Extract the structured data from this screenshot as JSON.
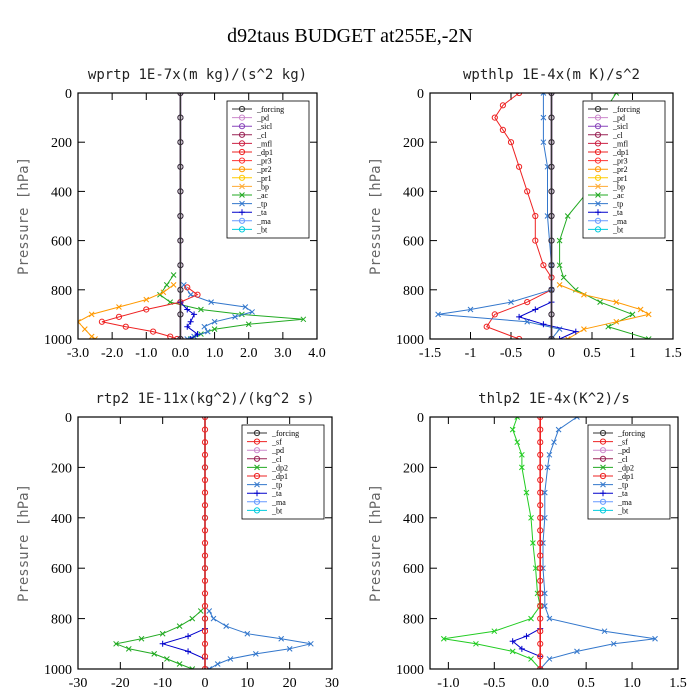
{
  "figure_title": "d92taus  BUDGET at255E,-2N",
  "chart_data": [
    {
      "type": "line",
      "title": "wprtp  1E-7x(m kg)/(s^2 kg)",
      "ylabel": "Pressure [hPa]",
      "xlabel": "",
      "xlim": [
        -3.0,
        4.0
      ],
      "ylim": [
        1000,
        0
      ],
      "xticks": [
        "-3.0",
        "-2.0",
        "-1.0",
        "0.0",
        "1.0",
        "2.0",
        "3.0",
        "4.0"
      ],
      "yticks": [
        "0",
        "200",
        "400",
        "600",
        "800",
        "1000"
      ],
      "legend": [
        "_forcing",
        "_pd",
        "_sicl",
        "_cl",
        "_mfl",
        "_dp1",
        "_pr3",
        "_pr2",
        "_pr1",
        "_bp",
        "_ac",
        "_tp",
        "_ta",
        "_ma",
        "_bt"
      ],
      "legend_position": "top-right",
      "series": [
        {
          "name": "_ac",
          "color": "#22aa22",
          "marker": "x",
          "y": [
            740,
            780,
            820,
            850,
            880,
            900,
            920,
            940,
            960,
            980,
            1000
          ],
          "x": [
            -0.2,
            -0.4,
            -0.6,
            -0.3,
            0.6,
            1.8,
            3.6,
            2.0,
            1.0,
            0.6,
            0.3
          ]
        },
        {
          "name": "_tp",
          "color": "#3377cc",
          "marker": "x",
          "y": [
            780,
            820,
            850,
            870,
            890,
            910,
            930,
            950,
            970,
            990,
            1000
          ],
          "x": [
            0.1,
            0.3,
            0.9,
            1.9,
            2.1,
            1.6,
            1.0,
            0.7,
            0.8,
            0.4,
            0.2
          ]
        },
        {
          "name": "_bp",
          "color": "#ff9900",
          "marker": "x",
          "y": [
            780,
            810,
            840,
            870,
            900,
            930,
            960,
            990,
            1000
          ],
          "x": [
            -0.2,
            -0.5,
            -1.0,
            -1.8,
            -2.6,
            -3.0,
            -2.8,
            -2.6,
            -2.5
          ]
        },
        {
          "name": "_dp1",
          "color": "#ee2222",
          "marker": "o",
          "y": [
            790,
            820,
            850,
            880,
            910,
            930,
            950,
            970,
            990,
            1000
          ],
          "x": [
            0.2,
            0.5,
            0.0,
            -1.0,
            -1.8,
            -2.3,
            -1.6,
            -0.8,
            -0.3,
            -0.1
          ]
        },
        {
          "name": "_ta",
          "color": "#0000cc",
          "marker": "+",
          "y": [
            850,
            880,
            900,
            930,
            950,
            980,
            1000
          ],
          "x": [
            0.0,
            0.2,
            0.4,
            0.3,
            0.2,
            0.5,
            0.3
          ]
        },
        {
          "name": "_bt",
          "color": "#aa44cc",
          "marker": "o",
          "y": [
            0,
            100,
            200,
            300,
            400,
            500,
            600,
            700,
            800,
            900,
            1000
          ],
          "x": [
            0,
            0,
            0,
            0,
            0,
            0,
            0,
            0,
            0,
            0,
            0
          ]
        },
        {
          "name": "_forcing",
          "color": "#333333",
          "marker": "o",
          "y": [
            0,
            100,
            200,
            300,
            400,
            500,
            600,
            700,
            800,
            900,
            1000
          ],
          "x": [
            0,
            0,
            0,
            0,
            0,
            0,
            0,
            0,
            0,
            0,
            0
          ]
        }
      ]
    },
    {
      "type": "line",
      "title": "wpthlp  1E-4x(m K)/s^2",
      "ylabel": "Pressure [hPa]",
      "xlabel": "",
      "xlim": [
        -1.5,
        1.5
      ],
      "ylim": [
        1000,
        0
      ],
      "xticks": [
        "-1.5",
        "-1",
        "-0.5",
        "0",
        "0.5",
        "1",
        "1.5"
      ],
      "yticks": [
        "0",
        "200",
        "400",
        "600",
        "800",
        "1000"
      ],
      "legend": [
        "_forcing",
        "_pd",
        "_sicl",
        "_cl",
        "_mfl",
        "_dp1",
        "_pr3",
        "_pr2",
        "_pr1",
        "_bp",
        "_ac",
        "_tp",
        "_ta",
        "_ma",
        "_bt"
      ],
      "legend_position": "top-right",
      "series": [
        {
          "name": "_dp1",
          "color": "#ee2222",
          "marker": "o",
          "y": [
            0,
            50,
            100,
            150,
            200,
            300,
            400,
            500,
            600,
            700,
            750,
            800,
            850,
            900,
            950,
            1000
          ],
          "x": [
            -0.4,
            -0.6,
            -0.7,
            -0.6,
            -0.5,
            -0.4,
            -0.3,
            -0.2,
            -0.2,
            -0.1,
            0.0,
            0.0,
            -0.3,
            -0.7,
            -0.8,
            -0.4
          ]
        },
        {
          "name": "_ac",
          "color": "#22aa22",
          "marker": "x",
          "y": [
            0,
            50,
            100,
            150,
            200,
            300,
            400,
            500,
            600,
            700,
            750,
            800,
            850,
            900,
            950,
            1000
          ],
          "x": [
            0.8,
            0.7,
            0.6,
            0.7,
            0.6,
            0.5,
            0.45,
            0.2,
            0.1,
            0.1,
            0.15,
            0.3,
            0.6,
            1.0,
            0.7,
            1.2
          ]
        },
        {
          "name": "_tp",
          "color": "#3377cc",
          "marker": "x",
          "y": [
            0,
            100,
            200,
            300,
            500,
            700,
            800,
            850,
            880,
            900,
            930,
            960,
            1000
          ],
          "x": [
            -0.1,
            -0.1,
            -0.1,
            -0.05,
            -0.05,
            0.0,
            0.0,
            -0.5,
            -1.0,
            -1.4,
            -0.3,
            0.1,
            0.0
          ]
        },
        {
          "name": "_bp",
          "color": "#ff9900",
          "marker": "x",
          "y": [
            780,
            820,
            850,
            880,
            900,
            930,
            960,
            1000
          ],
          "x": [
            0.1,
            0.4,
            0.8,
            1.1,
            1.2,
            0.8,
            0.4,
            0.2
          ]
        },
        {
          "name": "_ta",
          "color": "#0000cc",
          "marker": "+",
          "y": [
            850,
            880,
            910,
            940,
            970,
            1000
          ],
          "x": [
            0.0,
            -0.2,
            -0.4,
            -0.1,
            0.3,
            0.1
          ]
        },
        {
          "name": "_bt",
          "color": "#aa44cc",
          "marker": "o",
          "y": [
            0,
            100,
            200,
            300,
            400,
            500,
            600,
            700,
            800,
            900,
            1000
          ],
          "x": [
            0,
            0,
            0,
            0,
            0,
            0,
            0,
            0,
            0,
            0,
            0
          ]
        },
        {
          "name": "_forcing",
          "color": "#333333",
          "marker": "o",
          "y": [
            0,
            100,
            200,
            300,
            400,
            500,
            600,
            700,
            800,
            900,
            1000
          ],
          "x": [
            0,
            0,
            0,
            0,
            0,
            0,
            0,
            0,
            0,
            0,
            0
          ]
        }
      ]
    },
    {
      "type": "line",
      "title": "rtp2  1E-11x(kg^2)/(kg^2 s)",
      "ylabel": "Pressure [hPa]",
      "xlabel": "",
      "xlim": [
        -30,
        30
      ],
      "ylim": [
        1000,
        0
      ],
      "xticks": [
        "-30",
        "-20",
        "-10",
        "0",
        "10",
        "20",
        "30"
      ],
      "yticks": [
        "0",
        "200",
        "400",
        "600",
        "800",
        "1000"
      ],
      "legend": [
        "_forcing",
        "_sf",
        "_pd",
        "_cl",
        "_dp2",
        "_dp1",
        "_tp",
        "_ta",
        "_ma",
        "_bt"
      ],
      "legend_position": "top-right",
      "series": [
        {
          "name": "_dp2",
          "color": "#22aa22",
          "marker": "x",
          "y": [
            770,
            800,
            830,
            860,
            880,
            900,
            920,
            940,
            960,
            980,
            1000
          ],
          "x": [
            -1,
            -3,
            -6,
            -10,
            -15,
            -21,
            -18,
            -12,
            -9,
            -6,
            -3
          ]
        },
        {
          "name": "_tp",
          "color": "#3377cc",
          "marker": "x",
          "y": [
            770,
            800,
            830,
            860,
            880,
            900,
            920,
            940,
            960,
            980,
            1000
          ],
          "x": [
            1,
            2,
            5,
            10,
            18,
            25,
            20,
            12,
            6,
            3,
            1
          ]
        },
        {
          "name": "_ta",
          "color": "#0000cc",
          "marker": "+",
          "y": [
            840,
            870,
            900,
            930,
            960,
            1000
          ],
          "x": [
            0,
            -4,
            -10,
            -4,
            0,
            0
          ]
        },
        {
          "name": "_bt",
          "color": "#00ccdd",
          "marker": "o",
          "y": [
            0,
            200,
            400,
            600,
            800,
            1000
          ],
          "x": [
            0,
            0,
            0,
            0,
            0,
            0
          ]
        },
        {
          "name": "_forcing",
          "color": "#ee2222",
          "marker": "o",
          "y": [
            0,
            50,
            100,
            150,
            200,
            250,
            300,
            350,
            400,
            450,
            500,
            550,
            600,
            650,
            700,
            750,
            800,
            850,
            900,
            950,
            1000
          ],
          "x": [
            0,
            0,
            0,
            0,
            0,
            0,
            0,
            0,
            0,
            0,
            0,
            0,
            0,
            0,
            0,
            0,
            0,
            0,
            0,
            0,
            0
          ]
        }
      ]
    },
    {
      "type": "line",
      "title": "thlp2  1E-4x(K^2)/s",
      "ylabel": "Pressure [hPa]",
      "xlabel": "",
      "xlim": [
        -1.2,
        1.5
      ],
      "ylim": [
        1000,
        0
      ],
      "xticks": [
        "-1.0",
        "-0.5",
        "0.0",
        "0.5",
        "1.0",
        "1.5"
      ],
      "yticks": [
        "0",
        "200",
        "400",
        "600",
        "800",
        "1000"
      ],
      "legend": [
        "_forcing",
        "_sf",
        "_pd",
        "_cl",
        "_dp2",
        "_dp1",
        "_tp",
        "_ta",
        "_ma",
        "_bt"
      ],
      "legend_position": "top-right",
      "series": [
        {
          "name": "_dp2",
          "color": "#22cc22",
          "marker": "x",
          "y": [
            0,
            50,
            100,
            150,
            200,
            300,
            400,
            500,
            600,
            700,
            750,
            800,
            850,
            880,
            900,
            930,
            960,
            1000
          ],
          "x": [
            -0.25,
            -0.3,
            -0.25,
            -0.2,
            -0.2,
            -0.15,
            -0.1,
            -0.08,
            -0.05,
            -0.03,
            0.0,
            -0.1,
            -0.5,
            -1.05,
            -0.7,
            -0.3,
            -0.1,
            0.0
          ]
        },
        {
          "name": "_tp",
          "color": "#3377cc",
          "marker": "x",
          "y": [
            0,
            50,
            100,
            150,
            200,
            300,
            400,
            500,
            600,
            700,
            750,
            800,
            850,
            880,
            900,
            930,
            960,
            1000
          ],
          "x": [
            0.4,
            0.2,
            0.15,
            0.1,
            0.08,
            0.05,
            0.05,
            0.03,
            0.03,
            0.05,
            0.05,
            0.1,
            0.7,
            1.25,
            0.8,
            0.4,
            0.1,
            0.0
          ]
        },
        {
          "name": "_ta",
          "color": "#0000cc",
          "marker": "+",
          "y": [
            840,
            870,
            890,
            920,
            950,
            1000
          ],
          "x": [
            0.0,
            -0.15,
            -0.3,
            -0.2,
            0.0,
            0.0
          ]
        },
        {
          "name": "_forcing",
          "color": "#ee2222",
          "marker": "o",
          "y": [
            0,
            50,
            100,
            150,
            200,
            250,
            300,
            350,
            400,
            450,
            500,
            550,
            600,
            650,
            700,
            750,
            800,
            850,
            900,
            950,
            1000
          ],
          "x": [
            0,
            0,
            0,
            0,
            0,
            0,
            0,
            0,
            0,
            0,
            0,
            0,
            0,
            0,
            0,
            0,
            0,
            0,
            0,
            0,
            0
          ]
        }
      ]
    }
  ]
}
